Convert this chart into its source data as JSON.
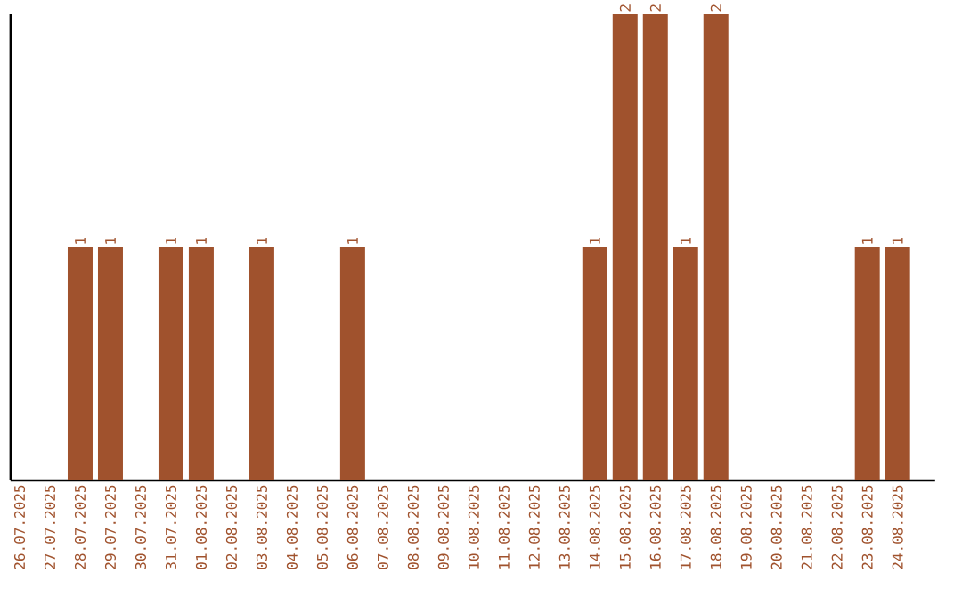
{
  "chart_data": {
    "type": "bar",
    "color": "#a0522d",
    "categories": [
      "26.07.2025",
      "27.07.2025",
      "28.07.2025",
      "29.07.2025",
      "30.07.2025",
      "31.07.2025",
      "01.08.2025",
      "02.08.2025",
      "03.08.2025",
      "04.08.2025",
      "05.08.2025",
      "06.08.2025",
      "07.08.2025",
      "08.08.2025",
      "09.08.2025",
      "10.08.2025",
      "11.08.2025",
      "12.08.2025",
      "13.08.2025",
      "14.08.2025",
      "15.08.2025",
      "16.08.2025",
      "17.08.2025",
      "18.08.2025",
      "19.08.2025",
      "20.08.2025",
      "21.08.2025",
      "22.08.2025",
      "23.08.2025",
      "24.08.2025"
    ],
    "values": [
      0,
      0,
      1,
      1,
      0,
      1,
      1,
      0,
      1,
      0,
      0,
      1,
      0,
      0,
      0,
      0,
      0,
      0,
      0,
      1,
      2,
      2,
      1,
      2,
      0,
      0,
      0,
      0,
      1,
      1
    ],
    "value_labels": [
      null,
      null,
      "1",
      "1",
      null,
      "1",
      "1",
      null,
      "1",
      null,
      null,
      "1",
      null,
      null,
      null,
      null,
      null,
      null,
      null,
      "1",
      "2",
      "2",
      "1",
      "2",
      null,
      null,
      null,
      null,
      "1",
      "1"
    ]
  }
}
